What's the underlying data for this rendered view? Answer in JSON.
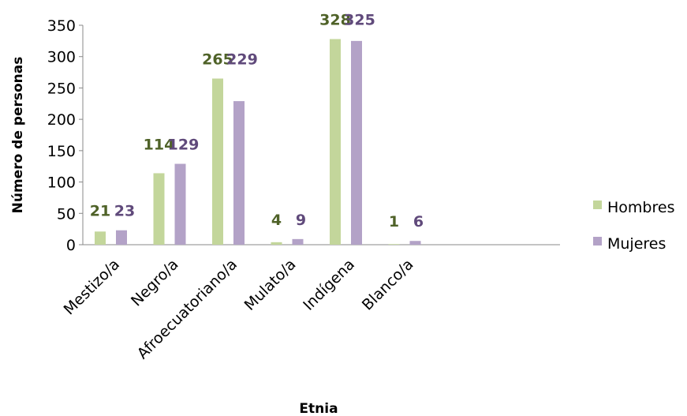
{
  "chart_data": {
    "type": "bar",
    "categories": [
      "Mestizo/a",
      "Negro/a",
      "Afroecuatoriano/a",
      "Mulato/a",
      "Indígena",
      "Blanco/a"
    ],
    "series": [
      {
        "name": "Hombres",
        "values": [
          21,
          114,
          265,
          4,
          328,
          1
        ],
        "color": "#c3d69b",
        "label_color": "#4f6228"
      },
      {
        "name": "Mujeres",
        "values": [
          23,
          129,
          229,
          9,
          325,
          6
        ],
        "color": "#b3a2c7",
        "label_color": "#604a7b"
      }
    ],
    "xlabel": "Etnia",
    "ylabel": "Número de personas",
    "ylim": [
      0,
      350
    ],
    "yticks": [
      0,
      50,
      100,
      150,
      200,
      250,
      300,
      350
    ],
    "grid": false,
    "legend_position": "right"
  }
}
